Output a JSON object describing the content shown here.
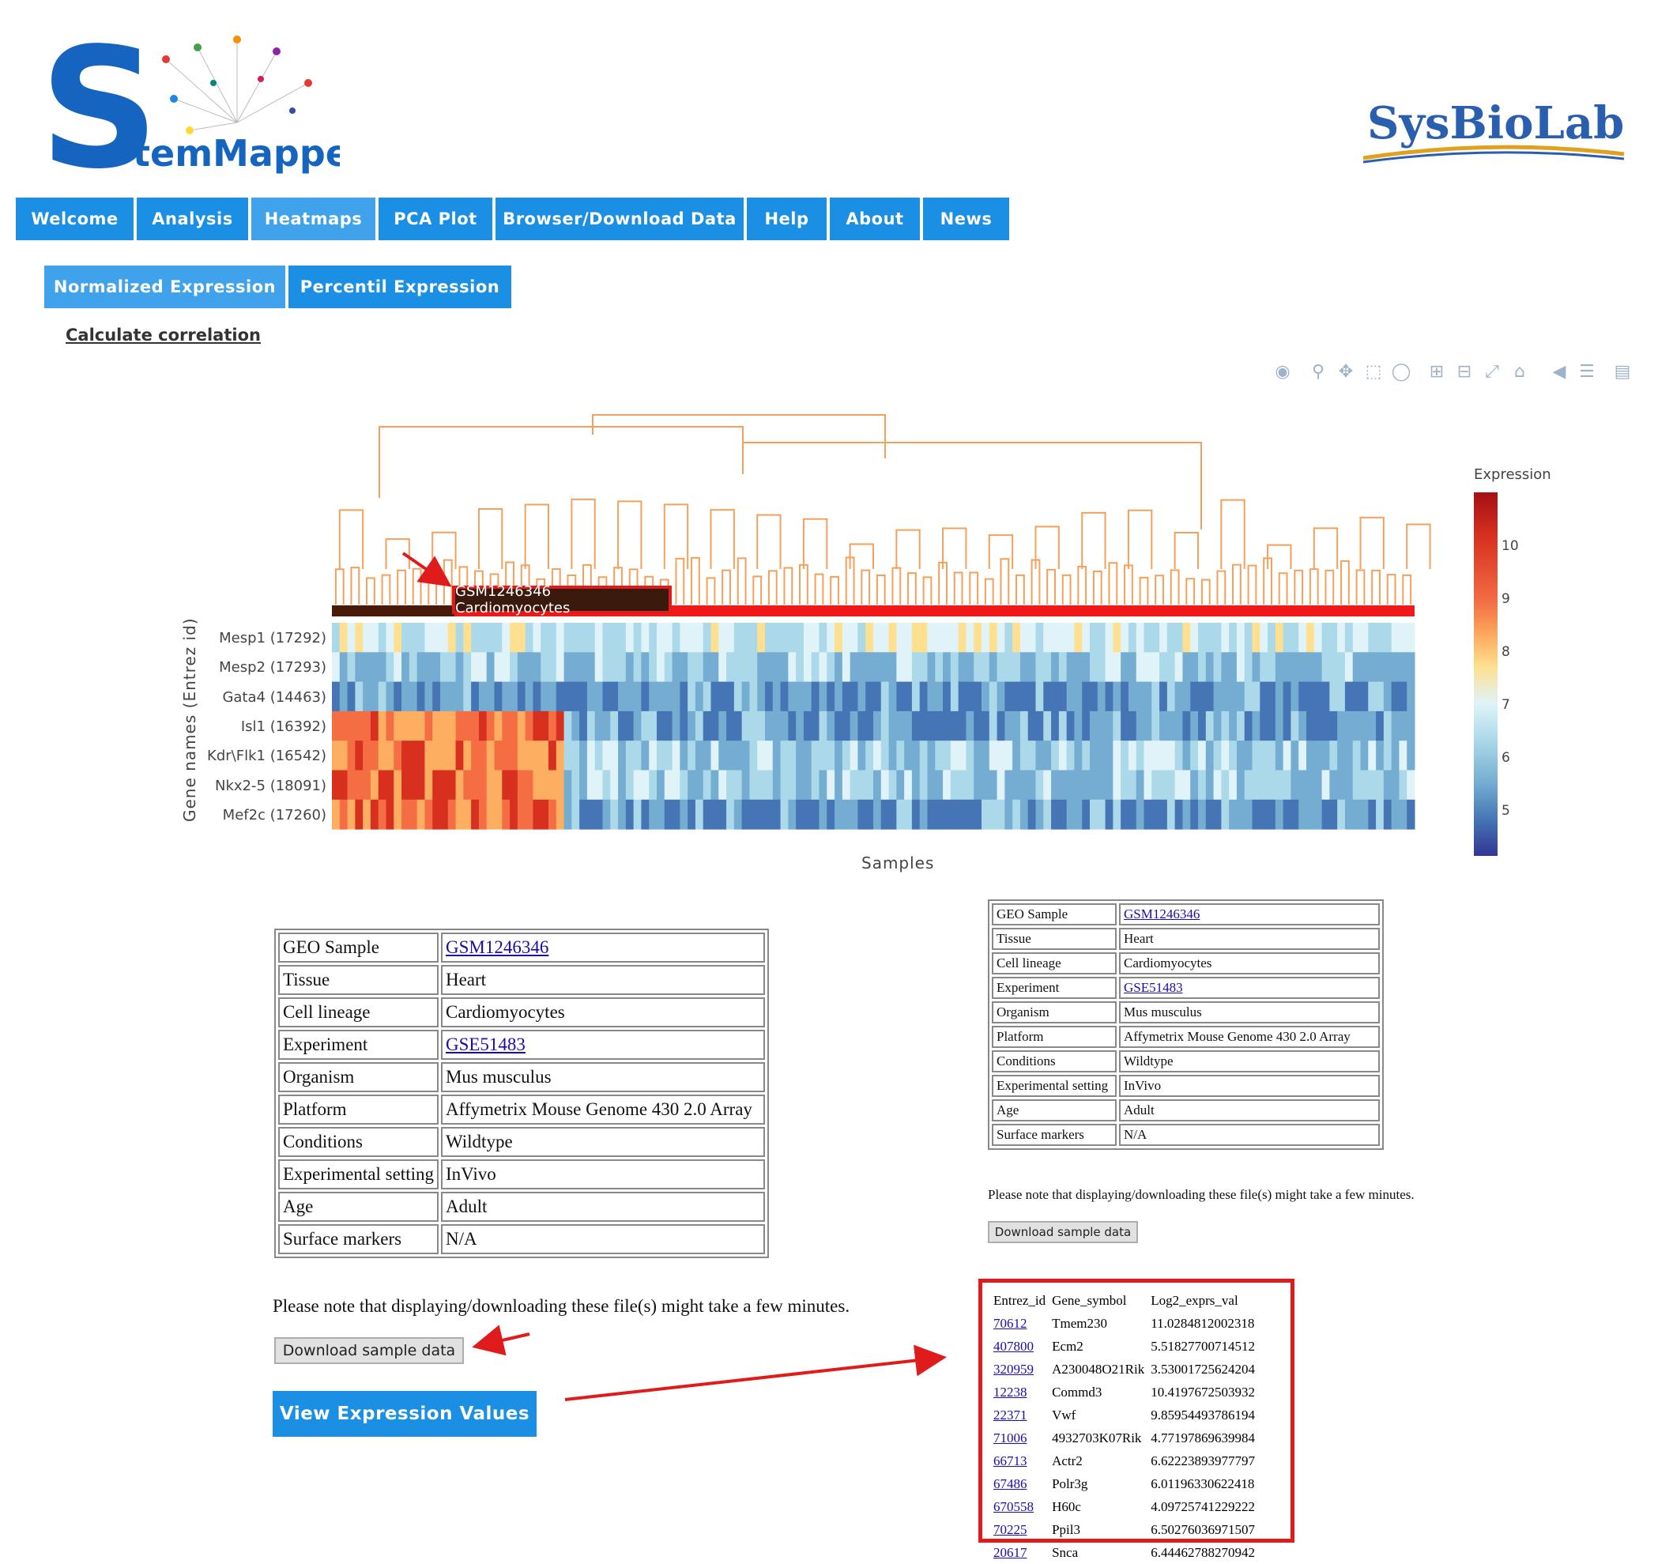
{
  "logo": {
    "left_text": "temMapper",
    "left_letter": "S",
    "right_text": "SysBioLab"
  },
  "nav": [
    "Welcome",
    "Analysis",
    "Heatmaps",
    "PCA Plot",
    "Browser/Download Data",
    "Help",
    "About",
    "News"
  ],
  "subnav": [
    "Normalized Expression",
    "Percentil Expression"
  ],
  "calc_link": "Calculate correlation",
  "toolbar": [
    "camera-icon",
    "zoom-icon",
    "pan-icon",
    "box-select-icon",
    "lasso-icon",
    "zoom-in-icon",
    "zoom-out-icon",
    "autoscale-icon",
    "reset-icon",
    "spike-icon",
    "compare-icon",
    "chart-icon"
  ],
  "heatmap": {
    "genes": [
      "Mesp1 (17292)",
      "Mesp2 (17293)",
      "Gata4 (14463)",
      "Isl1 (16392)",
      "Kdr\\Flk1 (16542)",
      "Nkx2-5 (18091)",
      "Mef2c (17260)"
    ],
    "y_title": "Gene names (Entrez id)",
    "x_title": "Samples",
    "hover": "GSM1246346 Cardiomyocytes",
    "colorbar_title": "Expression",
    "colorbar_ticks": [
      "10",
      "9",
      "8",
      "7",
      "6",
      "5"
    ]
  },
  "sample_table": [
    {
      "key": "GEO Sample",
      "value": "GSM1246346",
      "link": true
    },
    {
      "key": "Tissue",
      "value": "Heart",
      "link": false
    },
    {
      "key": "Cell lineage",
      "value": "Cardiomyocytes",
      "link": false
    },
    {
      "key": "Experiment",
      "value": "GSE51483",
      "link": true
    },
    {
      "key": "Organism",
      "value": "Mus musculus",
      "link": false
    },
    {
      "key": "Platform",
      "value": "Affymetrix Mouse Genome 430 2.0 Array",
      "link": false
    },
    {
      "key": "Conditions",
      "value": "Wildtype",
      "link": false
    },
    {
      "key": "Experimental setting",
      "value": "InVivo",
      "link": false
    },
    {
      "key": "Age",
      "value": "Adult",
      "link": false
    },
    {
      "key": "Surface markers",
      "value": "N/A",
      "link": false
    }
  ],
  "note": "Please note that displaying/downloading these file(s) might take a few minutes.",
  "download_label": "Download sample data",
  "view_label": "View Expression Values",
  "expr_table": {
    "headers": [
      "Entrez_id",
      "Gene_symbol",
      "Log2_exprs_val"
    ],
    "rows": [
      [
        "70612",
        "Tmem230",
        "11.0284812002318"
      ],
      [
        "407800",
        "Ecm2",
        "5.51827700714512"
      ],
      [
        "320959",
        "A230048O21Rik",
        "3.53001725624204"
      ],
      [
        "12238",
        "Commd3",
        "10.4197672503932"
      ],
      [
        "22371",
        "Vwf",
        "9.85954493786194"
      ],
      [
        "71006",
        "4932703K07Rik",
        "4.77197869639984"
      ],
      [
        "66713",
        "Actr2",
        "6.62223893977797"
      ],
      [
        "67486",
        "Polr3g",
        "6.01196330622418"
      ],
      [
        "670558",
        "H60c",
        "4.09725741229222"
      ],
      [
        "70225",
        "Ppil3",
        "6.50276036971507"
      ],
      [
        "20617",
        "Snca",
        "6.44462788270942"
      ]
    ]
  }
}
